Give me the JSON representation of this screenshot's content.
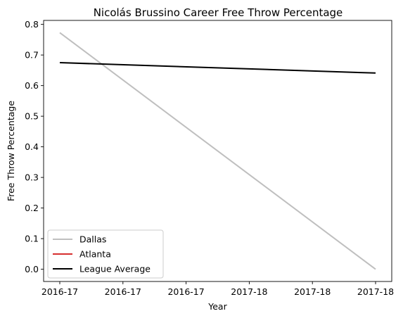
{
  "chart_data": {
    "type": "line",
    "title": "Nicolás Brussino Career Free Throw Percentage",
    "xlabel": "Year",
    "ylabel": "Free Throw Percentage",
    "x_tick_labels": [
      "2016-17",
      "2016-17",
      "2016-17",
      "2017-18",
      "2017-18",
      "2017-18"
    ],
    "x_range": [
      0,
      1
    ],
    "ylim": [
      -0.04,
      0.813
    ],
    "y_ticks": [
      0.0,
      0.1,
      0.2,
      0.3,
      0.4,
      0.5,
      0.6,
      0.7,
      0.8
    ],
    "grid": false,
    "legend_position": "lower-left",
    "series": [
      {
        "name": "Dallas",
        "color": "#bfbfbf",
        "x": [
          0,
          1
        ],
        "values": [
          0.773,
          0.0
        ]
      },
      {
        "name": "Atlanta",
        "color": "#d62f2f",
        "x": [],
        "values": []
      },
      {
        "name": "League Average",
        "color": "#000000",
        "x": [
          0,
          1
        ],
        "values": [
          0.675,
          0.641
        ]
      }
    ]
  }
}
